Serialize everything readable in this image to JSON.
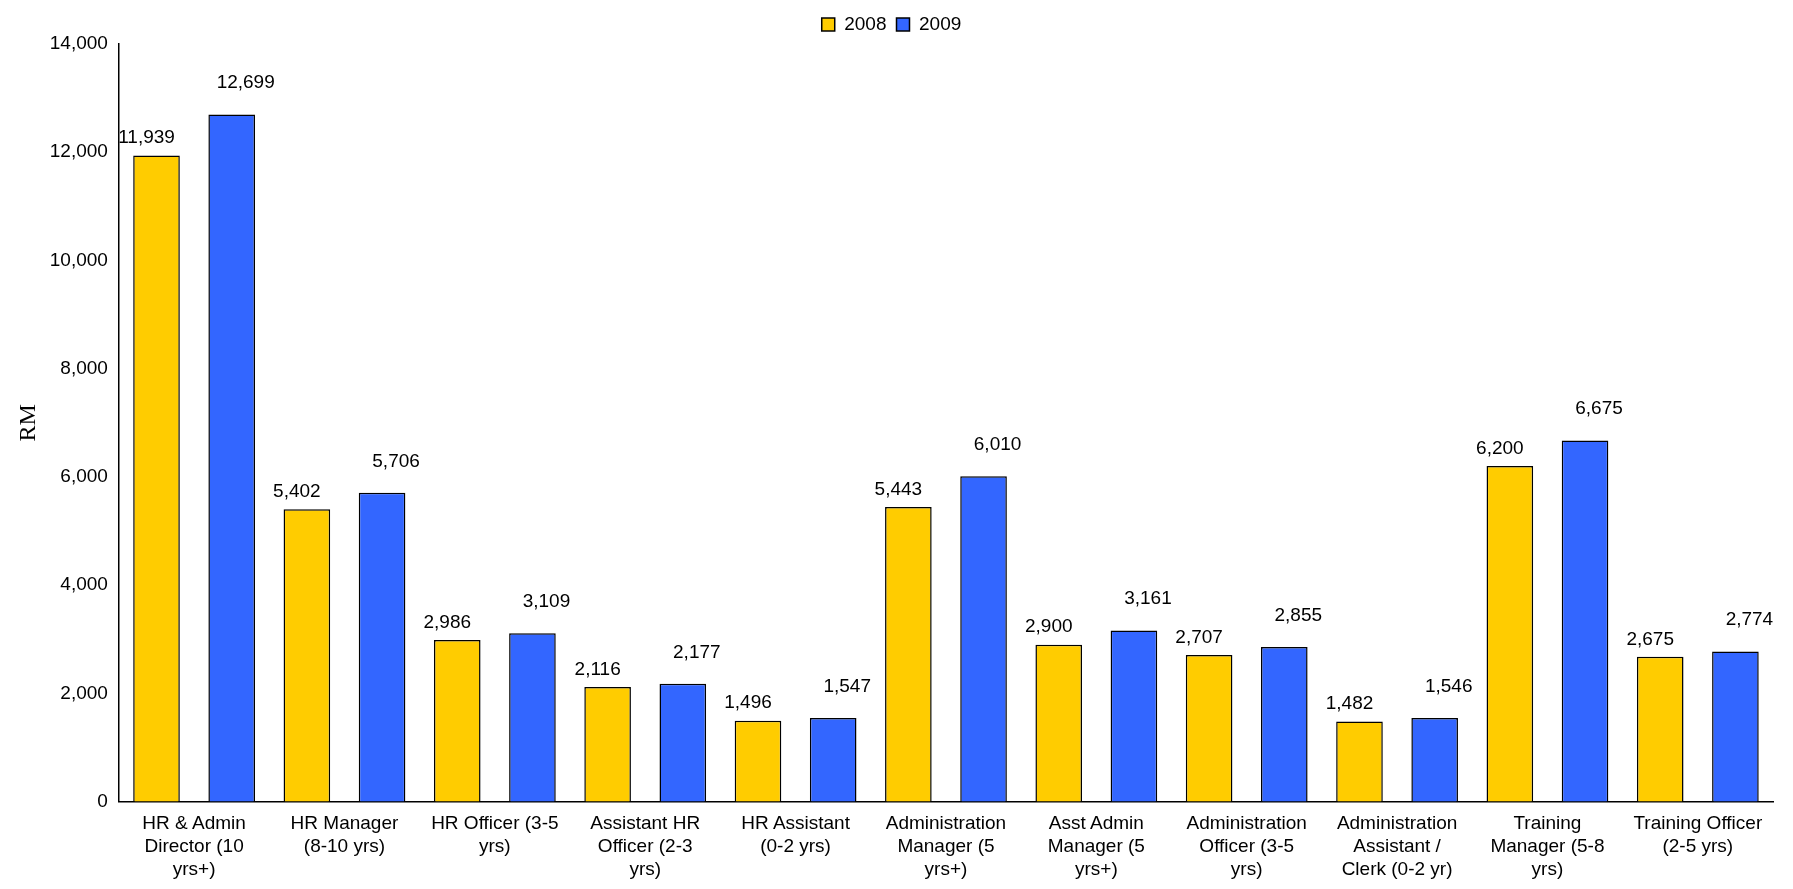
{
  "chart_data": {
    "type": "bar",
    "ylabel": "RM",
    "categories": [
      "HR & Admin Director (10 yrs+)",
      "HR Manager (8-10 yrs)",
      "HR Officer (3-5 yrs)",
      "Assistant HR Officer (2-3 yrs)",
      "HR Assistant (0-2 yrs)",
      "Administration Manager (5 yrs+)",
      "Asst Admin Manager (5 yrs+)",
      "Administration Officer (3-5 yrs)",
      "Administration Assistant / Clerk (0-2 yr)",
      "Training Manager (5-8 yrs)",
      "Training Officer (2-5 yrs)"
    ],
    "series": [
      {
        "name": "2008",
        "color": "#ffcc00",
        "values": [
          11939,
          5402,
          2986,
          2116,
          1496,
          5443,
          2900,
          2707,
          1482,
          6200,
          2675
        ],
        "value_labels": [
          "11,939",
          "5,402",
          "2,986",
          "2,116",
          "1,496",
          "5,443",
          "2,900",
          "2,707",
          "1,482",
          "6,200",
          "2,675"
        ]
      },
      {
        "name": "2009",
        "color": "#3366ff",
        "values": [
          12699,
          5706,
          3109,
          2177,
          1547,
          6010,
          3161,
          2855,
          1546,
          6675,
          2774
        ],
        "value_labels": [
          "12,699",
          "5,706",
          "3,109",
          "2,177",
          "1,547",
          "6,010",
          "3,161",
          "2,855",
          "1,546",
          "6,675",
          "2,774"
        ]
      }
    ],
    "ylim": [
      0,
      14000
    ],
    "yticks": [
      {
        "value": 0,
        "label": "0"
      },
      {
        "value": 2000,
        "label": "2,000"
      },
      {
        "value": 4000,
        "label": "4,000"
      },
      {
        "value": 6000,
        "label": "6,000"
      },
      {
        "value": 8000,
        "label": "8,000"
      },
      {
        "value": 10000,
        "label": "10,000"
      },
      {
        "value": 12000,
        "label": "12,000"
      },
      {
        "value": 14000,
        "label": "14,000"
      }
    ],
    "grid": false,
    "legend": "top"
  }
}
